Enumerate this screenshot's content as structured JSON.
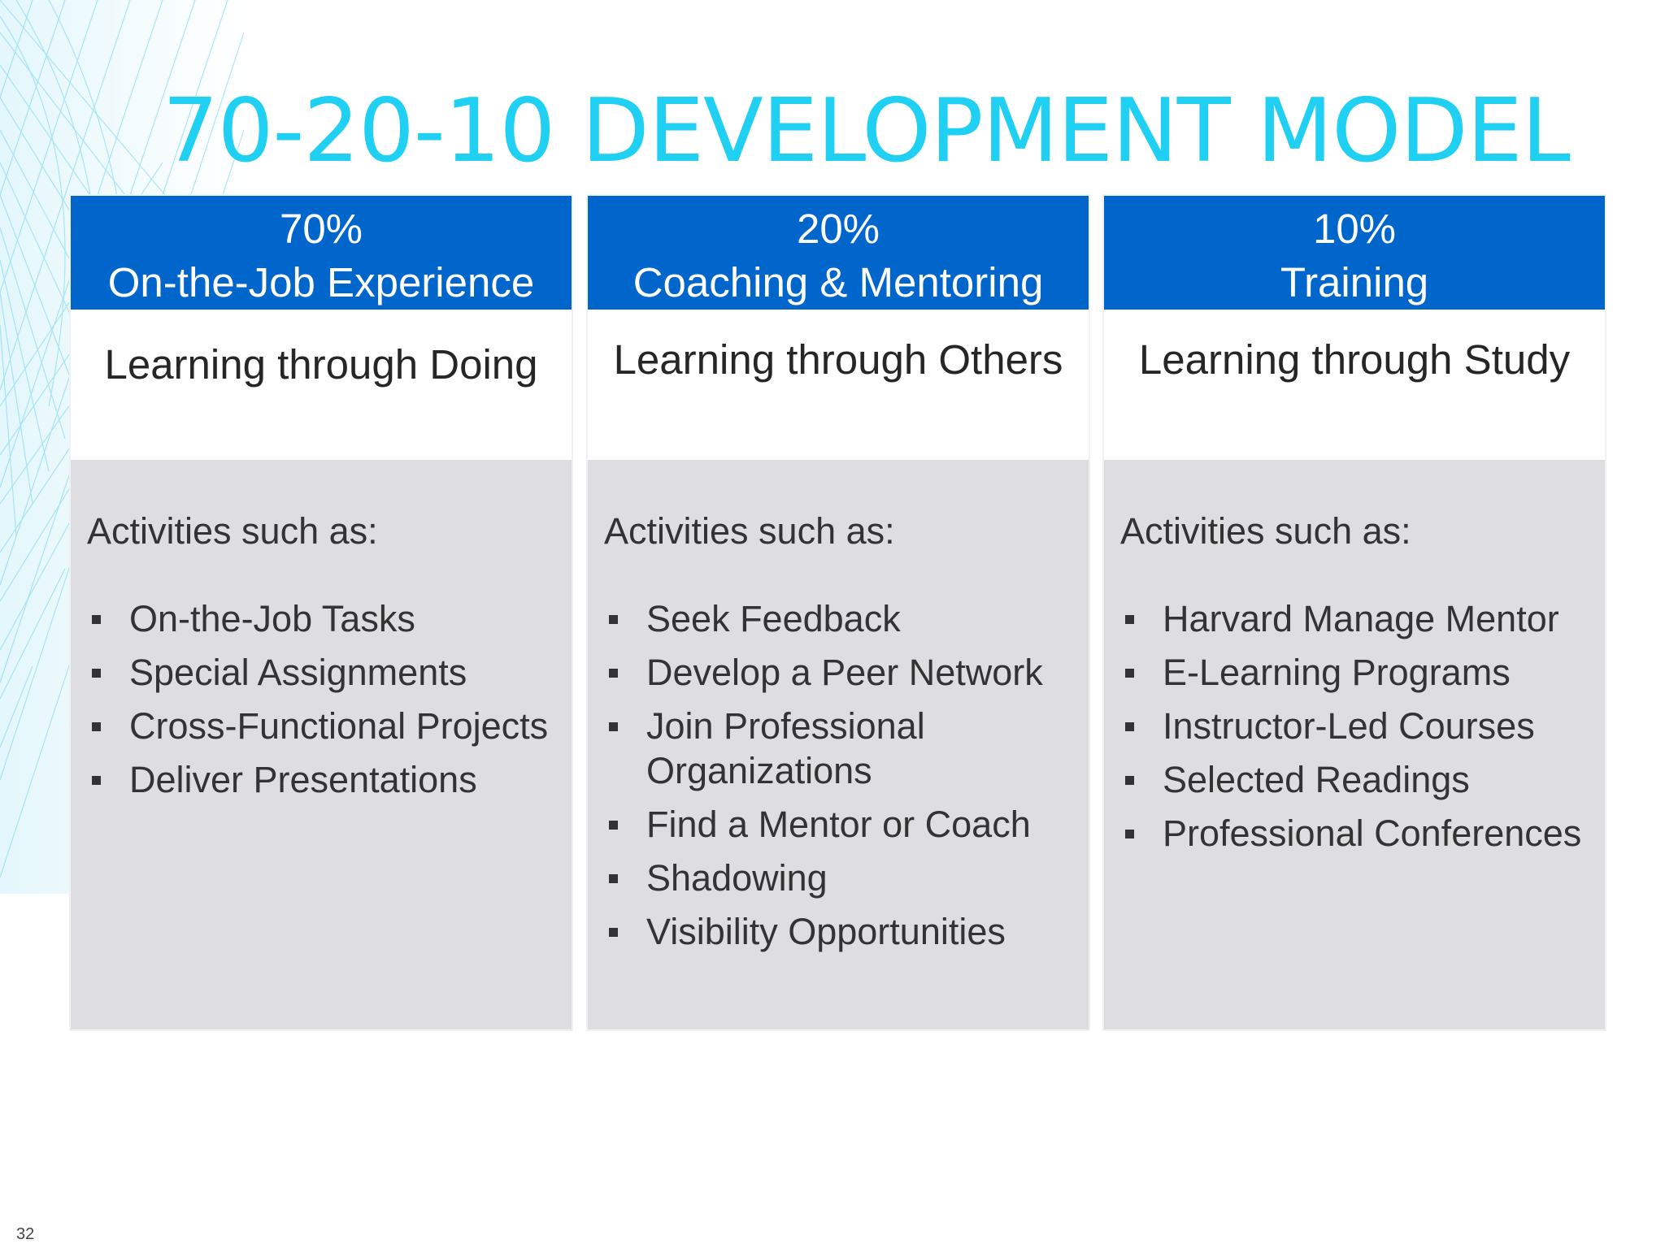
{
  "slide": {
    "title": "70-20-10 DEVELOPMENT MODEL",
    "page_number": "32"
  },
  "columns": [
    {
      "percent": "70%",
      "heading": "On-the-Job Experience",
      "subtitle": "Learning through Doing",
      "activities_label": "Activities such as:",
      "items": [
        "On-the-Job Tasks",
        "Special Assignments",
        "Cross-Functional Projects",
        "Deliver Presentations"
      ]
    },
    {
      "percent": "20%",
      "heading": "Coaching & Mentoring",
      "subtitle": "Learning through Others",
      "activities_label": "Activities such as:",
      "items": [
        "Seek Feedback",
        "Develop a Peer Network",
        "Join Professional Organizations",
        "Find a Mentor or Coach",
        "Shadowing",
        "Visibility Opportunities"
      ]
    },
    {
      "percent": "10%",
      "heading": "Training",
      "subtitle": "Learning through Study",
      "activities_label": "Activities such as:",
      "items": [
        "Harvard Manage Mentor",
        "E-Learning Programs",
        "Instructor-Led Courses",
        "Selected Readings",
        "Professional Conferences"
      ]
    }
  ],
  "colors": {
    "title": "#1fd0f2",
    "header_bg": "#0066cc",
    "body_bg": "#dedde0"
  }
}
